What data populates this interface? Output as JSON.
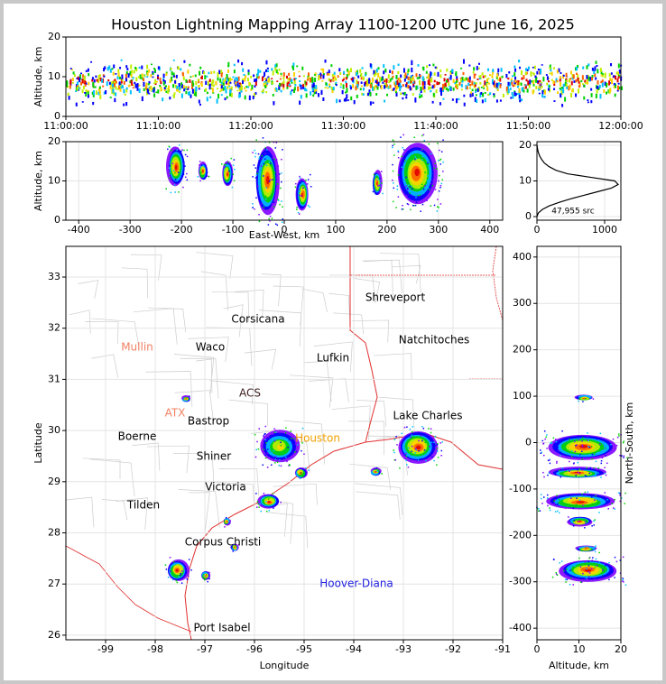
{
  "chart_data": [
    {
      "type": "time-height",
      "title": "Houston Lightning Mapping Array 1100-1200 UTC June 16, 2025",
      "y_label": "Altitude, km",
      "ylim": [
        0,
        20
      ],
      "yticks": [
        0,
        10,
        20
      ],
      "xlim": [
        0,
        60
      ],
      "xticks": [
        {
          "value": 0,
          "label": "11:00:00"
        },
        {
          "value": 10,
          "label": "11:10:00"
        },
        {
          "value": 20,
          "label": "11:20:00"
        },
        {
          "value": 30,
          "label": "11:30:00"
        },
        {
          "value": 40,
          "label": "11:40:00"
        },
        {
          "value": 50,
          "label": "11:50:00"
        },
        {
          "value": 60,
          "label": "12:00:00"
        }
      ]
    },
    {
      "type": "ew-height",
      "x_label": "East-West, km",
      "y_label": "Altitude, km",
      "xlim": [
        -425,
        425
      ],
      "xticks": [
        -400,
        -300,
        -200,
        -100,
        0,
        100,
        200,
        300,
        400
      ],
      "ylim": [
        0,
        20
      ],
      "yticks": [
        0,
        10,
        20
      ]
    },
    {
      "type": "histogram-line",
      "annotation": "47,955 src",
      "xlim": [
        0,
        1240
      ],
      "xticks": [
        0,
        1000
      ],
      "ylim": [
        -1,
        21
      ],
      "yticks": [
        0,
        10,
        20
      ],
      "x": [
        0,
        20,
        80,
        180,
        330,
        500,
        700,
        900,
        1100,
        1200,
        1150,
        800,
        450,
        280,
        180,
        110,
        70,
        40,
        20,
        8,
        2
      ],
      "y": [
        0,
        1,
        2,
        3,
        4,
        5,
        6,
        7,
        8,
        9,
        10,
        11,
        12,
        13,
        14,
        15,
        16,
        17,
        18,
        19,
        20
      ]
    },
    {
      "type": "map",
      "x_label": "Longitude",
      "y_label": "Latitude",
      "xlim": [
        -99.8,
        -91
      ],
      "xticks": [
        -99,
        -98,
        -97,
        -96,
        -95,
        -94,
        -93,
        -92,
        -91
      ],
      "ylim": [
        25.91,
        33.6
      ],
      "yticks": [
        26,
        27,
        28,
        29,
        30,
        31,
        32,
        33
      ],
      "places": [
        {
          "name": "Shreveport",
          "color": "#000000"
        },
        {
          "name": "Corsicana",
          "color": "#000000"
        },
        {
          "name": "Mullin",
          "color": "#f08060"
        },
        {
          "name": "Waco",
          "color": "#000000"
        },
        {
          "name": "Natchitoches",
          "color": "#000000"
        },
        {
          "name": "Lufkin",
          "color": "#000000"
        },
        {
          "name": "ACS",
          "color": "#402020"
        },
        {
          "name": "ATX",
          "color": "#f08060"
        },
        {
          "name": "Bastrop",
          "color": "#000000"
        },
        {
          "name": "Lake Charles",
          "color": "#000000"
        },
        {
          "name": "Boerne",
          "color": "#000000"
        },
        {
          "name": "Houston",
          "color": "#f0a000"
        },
        {
          "name": "Shiner",
          "color": "#000000"
        },
        {
          "name": "Victoria",
          "color": "#000000"
        },
        {
          "name": "Tilden",
          "color": "#000000"
        },
        {
          "name": "Corpus Christi",
          "color": "#000000"
        },
        {
          "name": "Hoover-Diana",
          "color": "#2020e0"
        },
        {
          "name": "Port Isabel",
          "color": "#000000"
        }
      ]
    },
    {
      "type": "ns-height",
      "x_label": "Altitude, km",
      "y_label": "North-South, km",
      "xlim": [
        0,
        20
      ],
      "xticks": [
        0,
        10,
        20
      ],
      "ylim": [
        -425,
        423
      ],
      "yticks": [
        -400,
        -300,
        -200,
        -100,
        0,
        100,
        200,
        300,
        400
      ]
    }
  ]
}
